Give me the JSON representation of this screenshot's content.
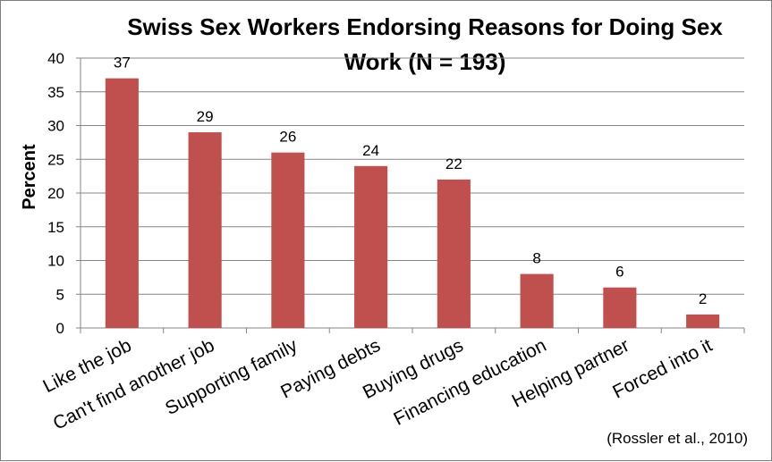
{
  "chart_data": {
    "type": "bar",
    "title_lines": [
      "Swiss Sex Workers Endorsing Reasons for Doing Sex",
      "Work (N = 193)"
    ],
    "ylabel": "Percent",
    "xlabel": "",
    "categories": [
      "Like the job",
      "Can't find another job",
      "Supporting family",
      "Paying debts",
      "Buying drugs",
      "Financing education",
      "Helping partner",
      "Forced into it"
    ],
    "values": [
      37,
      29,
      26,
      24,
      22,
      8,
      6,
      2
    ],
    "ylim": [
      0,
      40
    ],
    "yticks": [
      0,
      5,
      10,
      15,
      20,
      25,
      30,
      35,
      40
    ],
    "grid": true,
    "legend": "none",
    "data_labels": true,
    "bar_color": "#c0504d",
    "grid_color": "#868686",
    "source_note": "(Rossler et al., 2010)"
  }
}
